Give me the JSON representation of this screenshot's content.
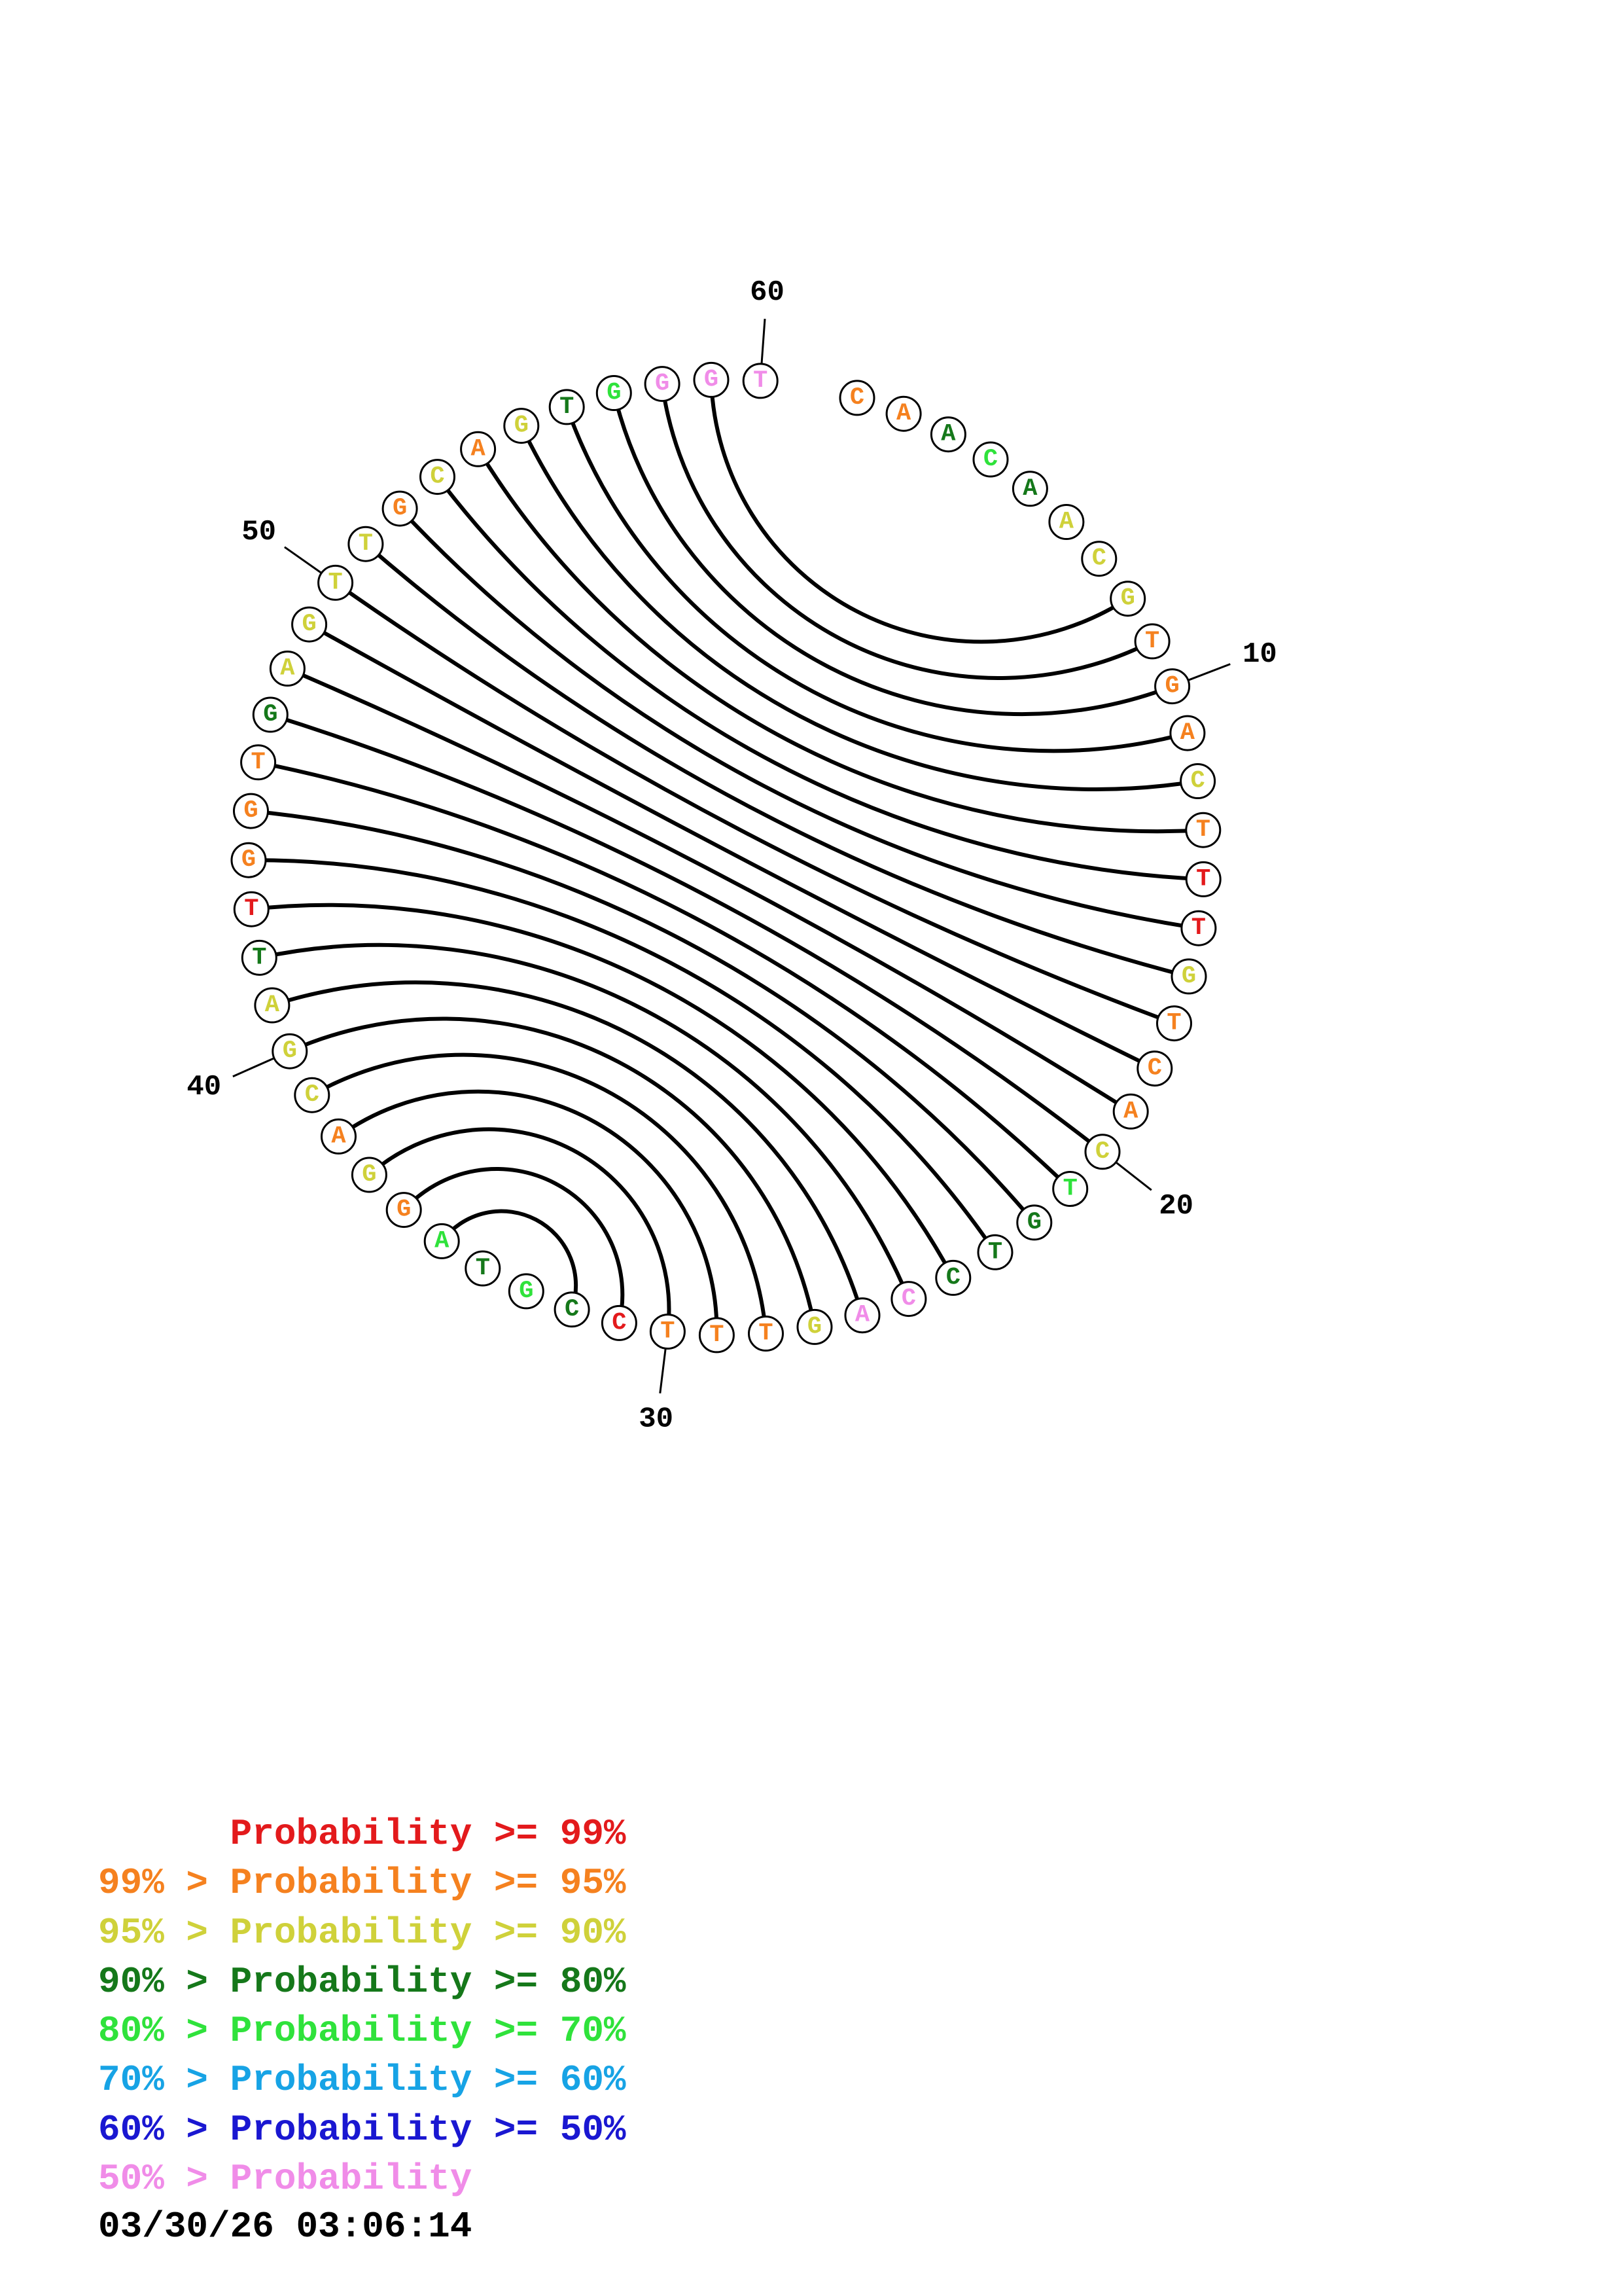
{
  "structure": {
    "sequence": "CAACAACGTGACTTTGTCACTGTCCAGTTTCCGTAGGACGATTGGTGAGTTGCAGTGGGT",
    "nucleotide_colors": [
      "o",
      "o",
      "g",
      "l",
      "g",
      "y",
      "y",
      "y",
      "o",
      "o",
      "o",
      "y",
      "o",
      "r",
      "r",
      "y",
      "o",
      "o",
      "o",
      "y",
      "l",
      "g",
      "g",
      "g",
      "p",
      "p",
      "y",
      "o",
      "o",
      "o",
      "r",
      "g",
      "l",
      "g",
      "l",
      "o",
      "y",
      "o",
      "y",
      "y",
      "y",
      "g",
      "r",
      "o",
      "o",
      "o",
      "g",
      "y",
      "y",
      "y",
      "y",
      "o",
      "y",
      "o",
      "y",
      "g",
      "l",
      "p",
      "p",
      "p"
    ],
    "pairs": [
      [
        8,
        59
      ],
      [
        9,
        58
      ],
      [
        10,
        57
      ],
      [
        11,
        56
      ],
      [
        12,
        55
      ],
      [
        13,
        54
      ],
      [
        14,
        53
      ],
      [
        15,
        52
      ],
      [
        16,
        51
      ],
      [
        17,
        50
      ],
      [
        18,
        49
      ],
      [
        19,
        48
      ],
      [
        20,
        47
      ],
      [
        21,
        46
      ],
      [
        22,
        45
      ],
      [
        23,
        44
      ],
      [
        24,
        43
      ],
      [
        25,
        42
      ],
      [
        26,
        41
      ],
      [
        27,
        40
      ],
      [
        28,
        39
      ],
      [
        29,
        38
      ],
      [
        30,
        37
      ],
      [
        31,
        36
      ],
      [
        32,
        35
      ]
    ],
    "position_labels": [
      "10",
      "20",
      "30",
      "40",
      "50",
      "60"
    ],
    "start_gap_position": "1"
  },
  "legend": [
    {
      "text": "      Probability >= 99%",
      "color": "#e31a1c"
    },
    {
      "text": "99% > Probability >= 95%",
      "color": "#f5811f"
    },
    {
      "text": "95% > Probability >= 90%",
      "color": "#cfd13a"
    },
    {
      "text": "90% > Probability >= 80%",
      "color": "#15781a"
    },
    {
      "text": "80% > Probability >= 70%",
      "color": "#2fe23b"
    },
    {
      "text": "70% > Probability >= 60%",
      "color": "#17a3e5"
    },
    {
      "text": "60% > Probability >= 50%",
      "color": "#1a17d1"
    },
    {
      "text": "50% > Probability",
      "color": "#f08ce8"
    }
  ],
  "colors": {
    "r": "#e31a1c",
    "o": "#f5811f",
    "y": "#cfd13a",
    "g": "#15781a",
    "l": "#2fe23b",
    "c": "#17a3e5",
    "b": "#1a17d1",
    "p": "#f08ce8"
  },
  "timestamp": "03/30/26 03:06:14"
}
